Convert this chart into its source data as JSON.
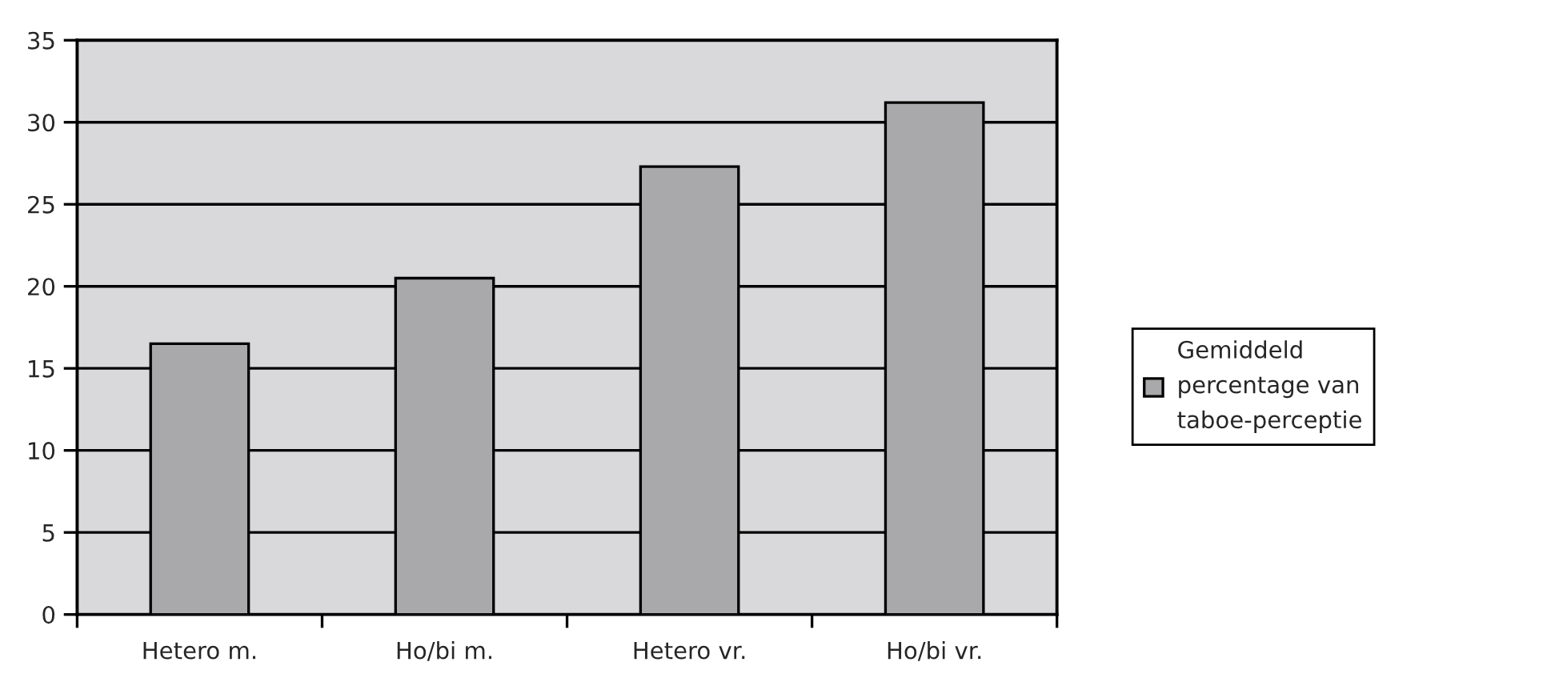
{
  "chart_data": {
    "type": "bar",
    "categories": [
      "Hetero m.",
      "Ho/bi m.",
      "Hetero vr.",
      "Ho/bi vr."
    ],
    "series": [
      {
        "name": "Gemiddeld percentage van taboe-perceptie",
        "color": "#a9a9ab",
        "values": [
          16.5,
          20.5,
          27.3,
          31.2
        ]
      }
    ],
    "ylim": [
      0,
      35
    ],
    "yticks": [
      0,
      5,
      10,
      15,
      20,
      25,
      30,
      35
    ],
    "grid": "y",
    "legend": "right"
  }
}
